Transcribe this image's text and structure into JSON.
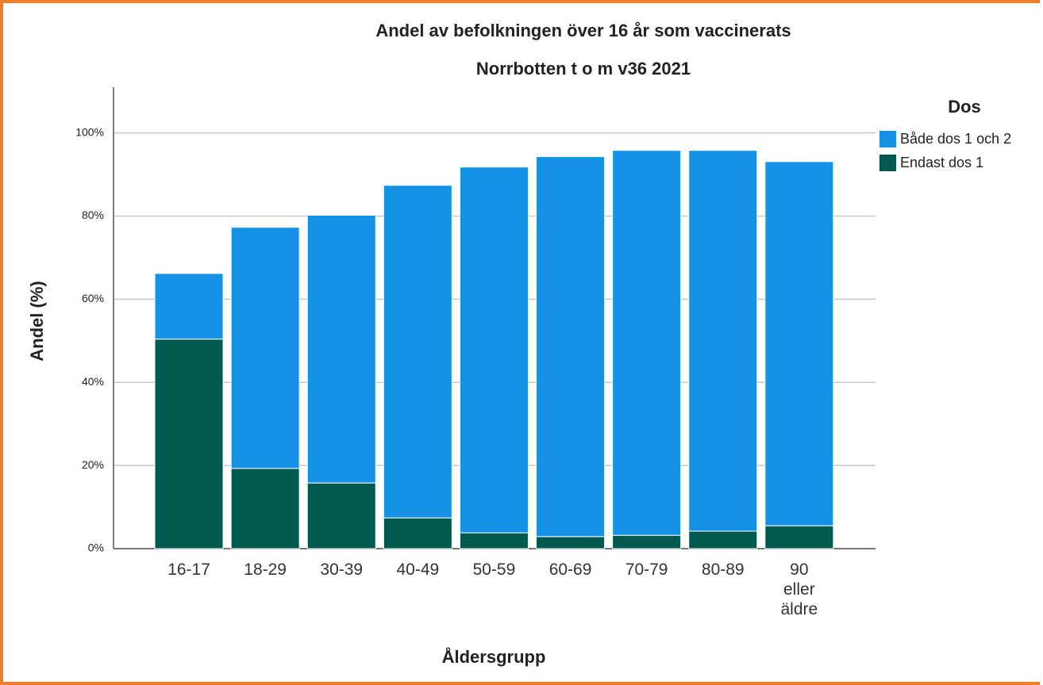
{
  "chart_data": {
    "type": "stacked_bar",
    "title": "Andel av befolkningen över 16 år som vaccinerats",
    "subtitle": "Norrbotten t o m v36 2021",
    "x_label": "Åldersgrupp",
    "y_label": "Andel (%)",
    "legend_title": "Dos",
    "legend_position": "right",
    "grid": true,
    "categories": [
      "16-17",
      "18-29",
      "30-39",
      "40-49",
      "50-59",
      "60-69",
      "70-79",
      "80-89",
      "90\neller\näldre"
    ],
    "series": [
      {
        "name": "Både dos 1 och 2",
        "color": "#1592e6",
        "values": [
          15.8,
          58.0,
          64.4,
          80.0,
          88.0,
          91.4,
          92.6,
          91.6,
          87.6
        ]
      },
      {
        "name": "Endast dos 1",
        "color": "#00594f",
        "values": [
          50.4,
          19.3,
          15.8,
          7.4,
          3.8,
          2.9,
          3.2,
          4.2,
          5.5
        ]
      }
    ],
    "ylim": [
      0,
      111
    ],
    "yticks": [
      {
        "value": 0,
        "label": "0%"
      },
      {
        "value": 20,
        "label": "20%"
      },
      {
        "value": 40,
        "label": "40%"
      },
      {
        "value": 60,
        "label": "60%"
      },
      {
        "value": 80,
        "label": "80%"
      },
      {
        "value": 100,
        "label": "100%"
      }
    ]
  }
}
